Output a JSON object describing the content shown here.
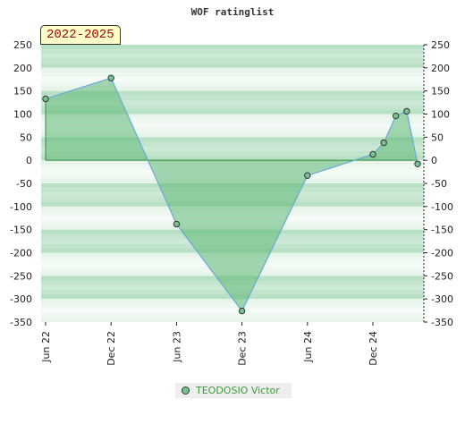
{
  "title": "WOF ratinglist",
  "period_label": "2022-2025",
  "colors": {
    "line": "#6aa8d8",
    "fill": "#5fb877",
    "baseline": "#2e8b3a",
    "marker": "#77c28f",
    "band_dark": "#b5dfc0",
    "band_light": "#e8f5ec"
  },
  "chart_data": {
    "type": "area",
    "title": "WOF ratinglist",
    "xlabel": "",
    "ylabel": "",
    "ylim": [
      -350,
      250
    ],
    "yticks": [
      250,
      200,
      150,
      100,
      50,
      0,
      -50,
      -100,
      -150,
      -200,
      -250,
      -300,
      -350
    ],
    "xticks": [
      {
        "label": "Jun 22",
        "t": 0
      },
      {
        "label": "Dec 22",
        "t": 6
      },
      {
        "label": "Jun 23",
        "t": 12
      },
      {
        "label": "Dec 23",
        "t": 18
      },
      {
        "label": "Jun 24",
        "t": 24
      },
      {
        "label": "Dec 24",
        "t": 30
      }
    ],
    "xlim": [
      0,
      34.5
    ],
    "series": [
      {
        "name": "TEODOSIO Victor",
        "points": [
          {
            "t": 0.0,
            "y": 133
          },
          {
            "t": 6.0,
            "y": 178
          },
          {
            "t": 12.0,
            "y": -138
          },
          {
            "t": 18.0,
            "y": -326
          },
          {
            "t": 24.0,
            "y": -33
          },
          {
            "t": 30.0,
            "y": 13
          },
          {
            "t": 31.0,
            "y": 38
          },
          {
            "t": 32.1,
            "y": 96
          },
          {
            "t": 33.1,
            "y": 106
          },
          {
            "t": 34.1,
            "y": -8
          }
        ]
      }
    ],
    "legend_position": "bottom-center",
    "grid": "horizontal bands"
  }
}
